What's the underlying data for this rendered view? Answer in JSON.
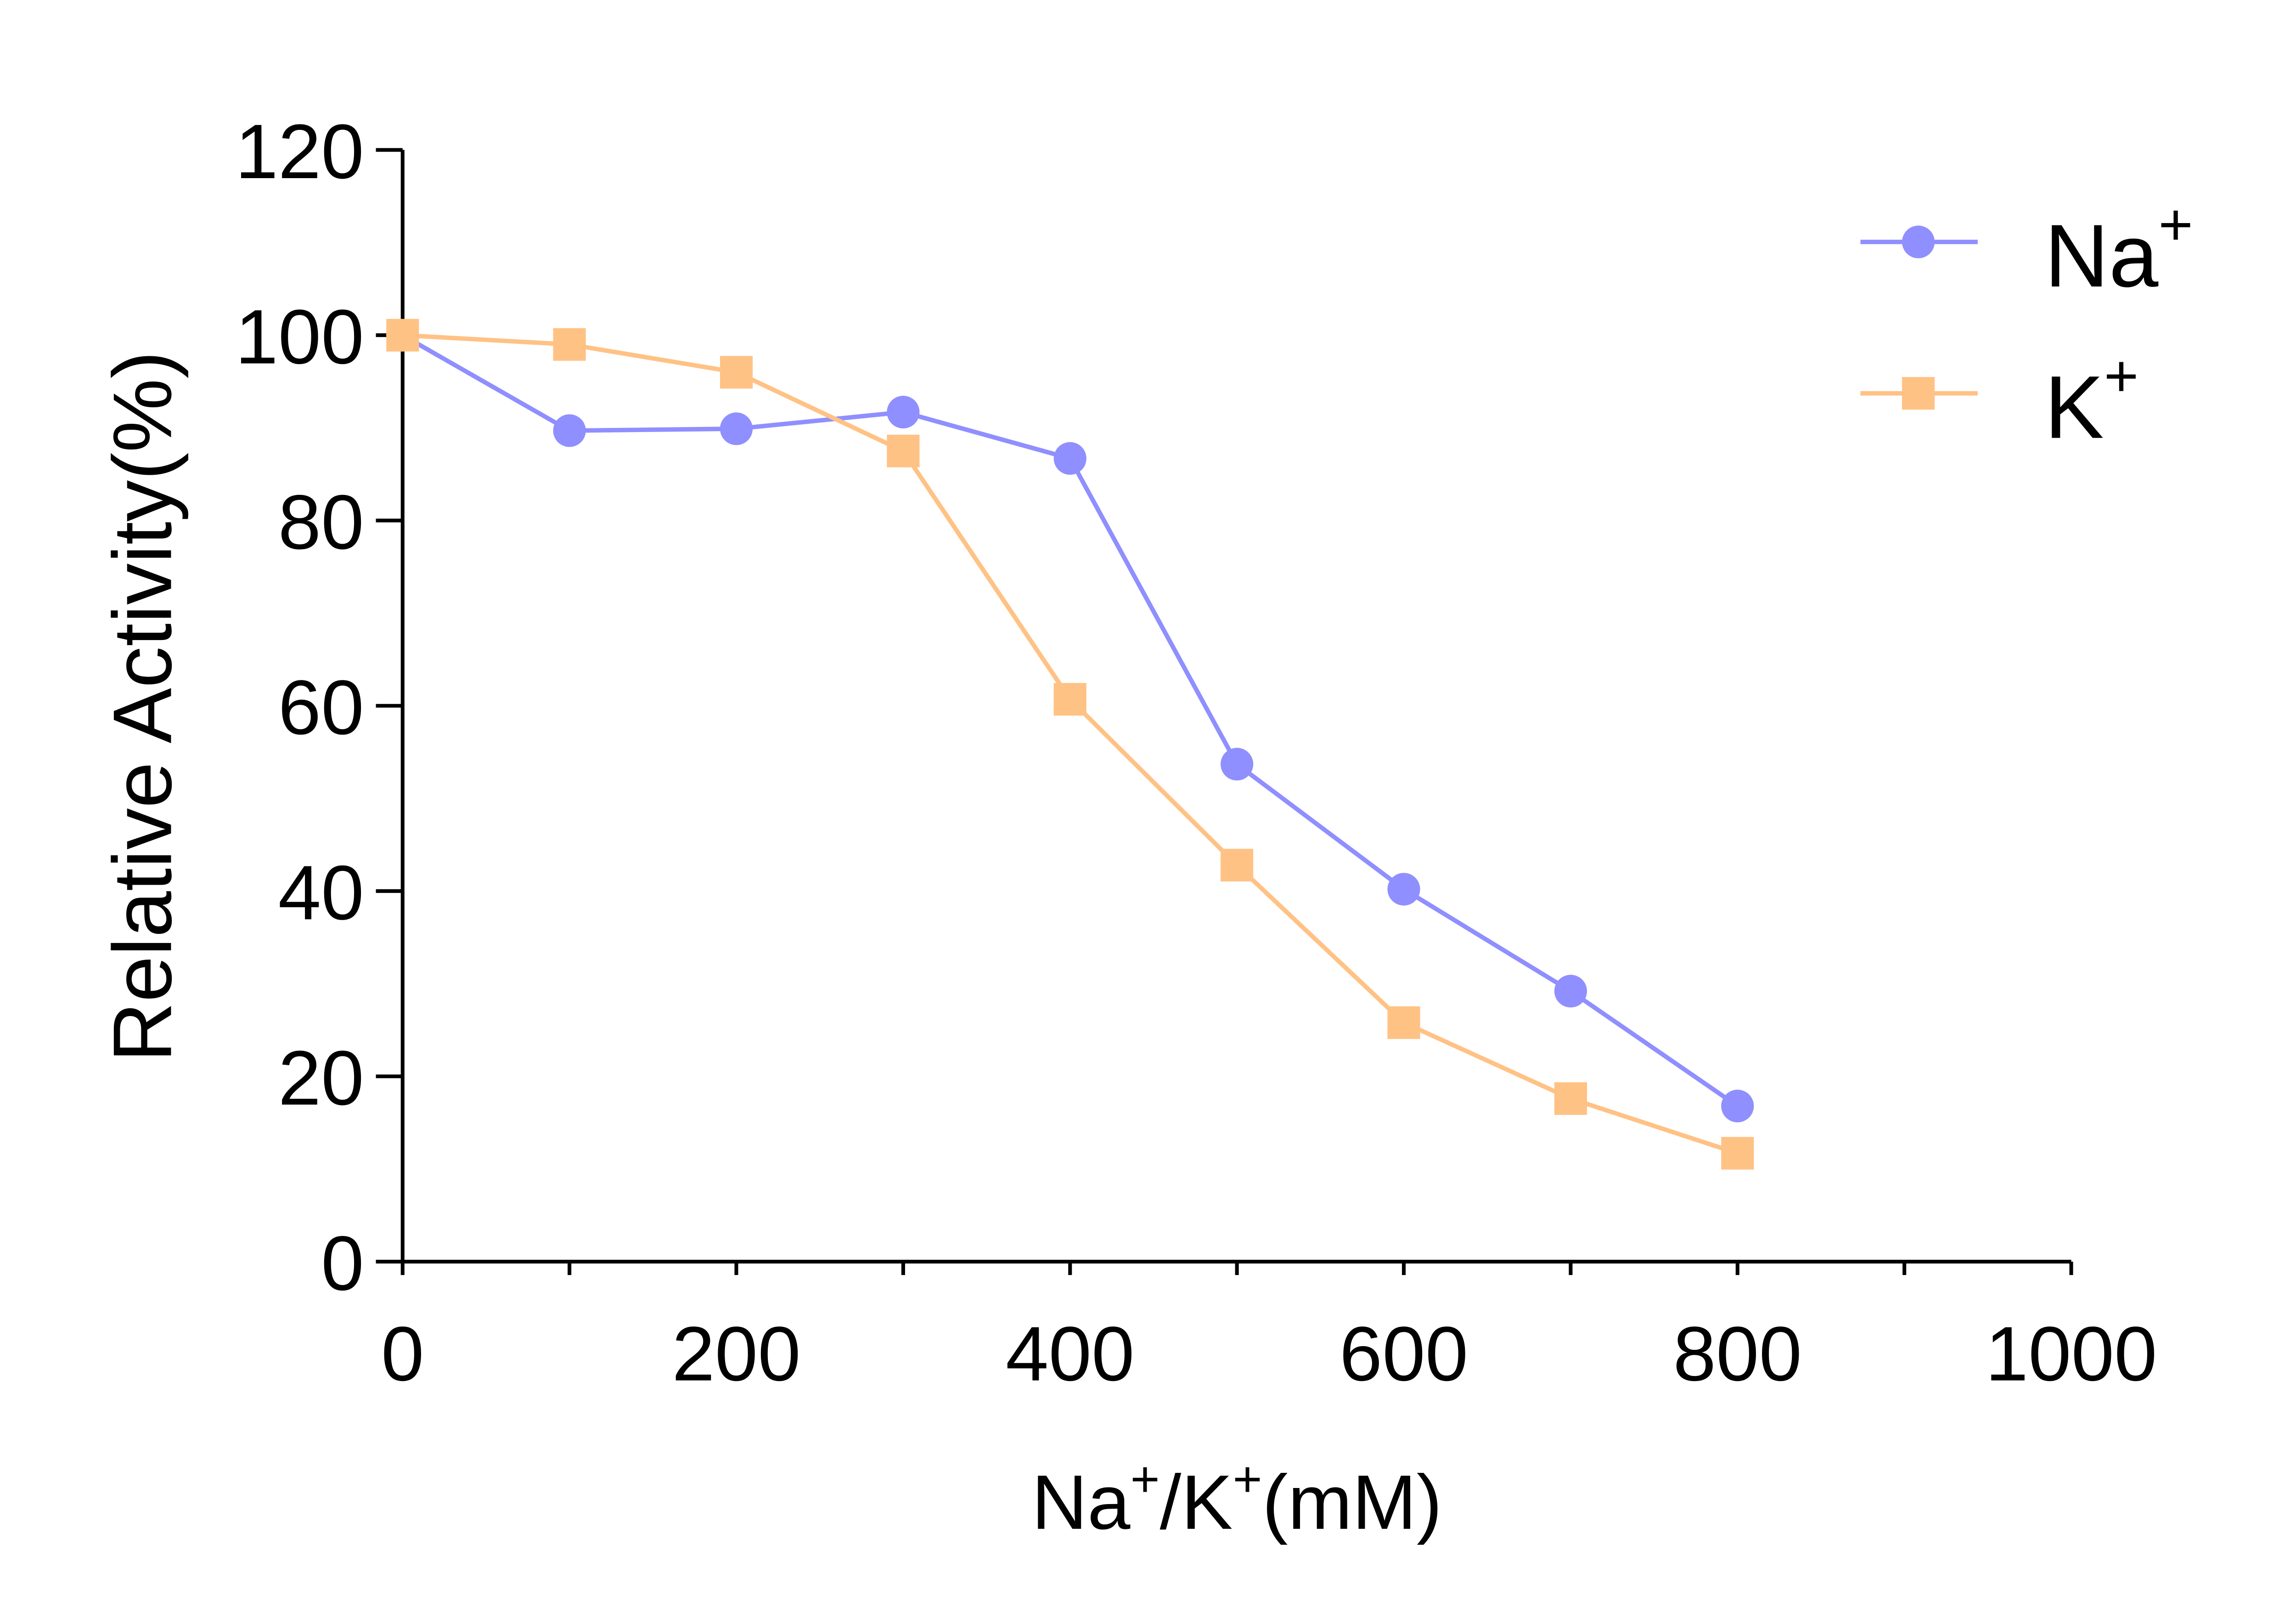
{
  "chart_data": {
    "type": "line",
    "xlabel": {
      "base1": "Na",
      "sup1": "+",
      "mid": "/K",
      "sup2": "+",
      "tail": "(mM)"
    },
    "ylabel": "Relative Activity(%)",
    "xlim": [
      0,
      1000
    ],
    "ylim": [
      0,
      120
    ],
    "xticks": [
      "0",
      "200",
      "400",
      "600",
      "800",
      "1000"
    ],
    "xtick_values": [
      0,
      200,
      400,
      600,
      800,
      1000
    ],
    "yticks": [
      "0",
      "20",
      "40",
      "60",
      "80",
      "100",
      "120"
    ],
    "ytick_values": [
      0,
      20,
      40,
      60,
      80,
      100,
      120
    ],
    "grid": false,
    "legend_position": "top-right",
    "x": [
      0,
      100,
      200,
      300,
      400,
      500,
      600,
      700,
      800
    ],
    "series": [
      {
        "name": "Na",
        "name_sup": "+",
        "marker": "circle",
        "color": "#8F8FFF",
        "values": [
          100,
          89.7,
          89.9,
          91.7,
          86.7,
          53.7,
          40.2,
          29.2,
          16.8
        ]
      },
      {
        "name": "K",
        "name_sup": "+",
        "marker": "square",
        "color": "#FFC285",
        "values": [
          100,
          99.0,
          96.0,
          87.5,
          60.7,
          42.8,
          25.8,
          17.6,
          11.7
        ]
      }
    ]
  }
}
